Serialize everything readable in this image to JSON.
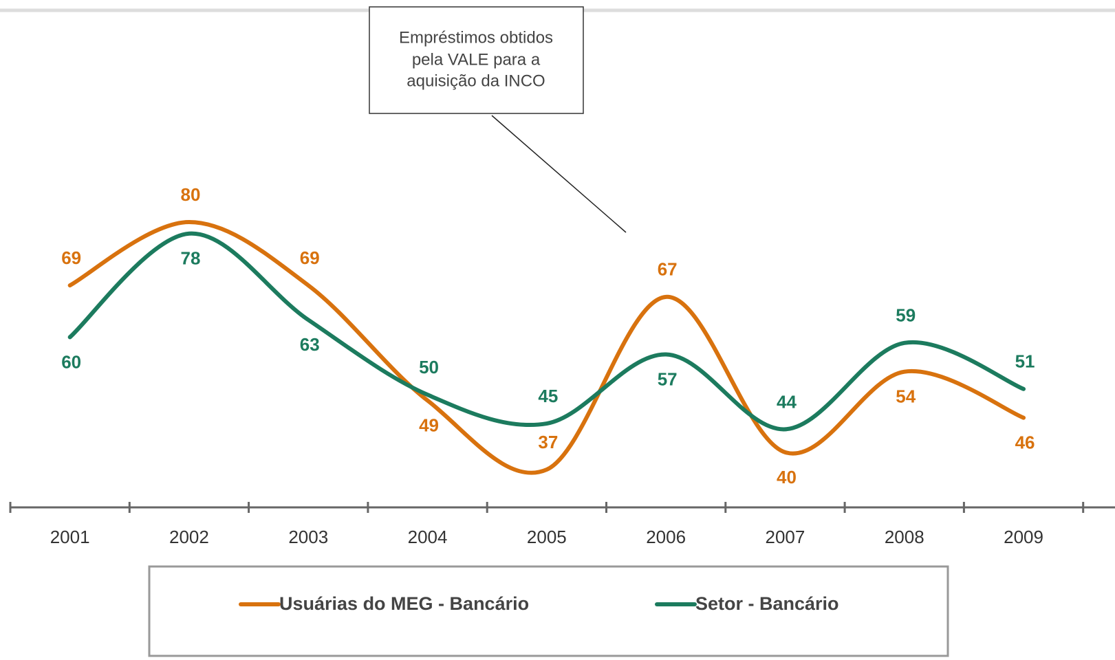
{
  "chart_data": {
    "type": "line",
    "categories": [
      "2001",
      "2002",
      "2003",
      "2004",
      "2005",
      "2006",
      "2007",
      "2008",
      "2009"
    ],
    "series": [
      {
        "name": "Usuárias do MEG - Bancário",
        "color": "#d8720e",
        "values": [
          69,
          80,
          69,
          49,
          37,
          67,
          40,
          54,
          46
        ]
      },
      {
        "name": "Setor - Bancário",
        "color": "#1c7b5e",
        "values": [
          60,
          78,
          63,
          50,
          45,
          57,
          44,
          59,
          51
        ]
      }
    ],
    "annotation": [
      "Empréstimos obtidos",
      "pela  VALE para a",
      "aquisição da INCO"
    ]
  }
}
